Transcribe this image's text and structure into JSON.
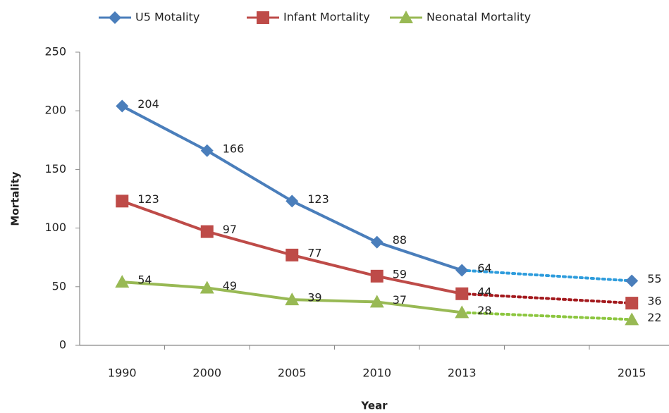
{
  "chart_data": {
    "type": "line",
    "x_label": "Year",
    "y_label": "Mortality",
    "categories": [
      "1990",
      "2000",
      "2005",
      "2010",
      "2013",
      null,
      "2015"
    ],
    "series": [
      {
        "name": "U5 Motality",
        "color": "#4a7ebb",
        "projection_color": "#2e9cdc",
        "marker": "diamond",
        "values": [
          204,
          166,
          123,
          88,
          64,
          null,
          55
        ]
      },
      {
        "name": "Infant Mortality",
        "color": "#be4b48",
        "projection_color": "#a3191d",
        "marker": "square",
        "values": [
          123,
          97,
          77,
          59,
          44,
          null,
          36
        ]
      },
      {
        "name": "Neonatal Mortality",
        "color": "#98b954",
        "projection_color": "#8cc63f",
        "marker": "triangle",
        "values": [
          54,
          49,
          39,
          37,
          28,
          null,
          22
        ]
      }
    ],
    "connect_gaps": true,
    "data_labels": true,
    "ylim": [
      0,
      250
    ],
    "yticks": [
      0,
      50,
      100,
      150,
      200,
      250
    ],
    "grid": false,
    "legend": "top"
  }
}
